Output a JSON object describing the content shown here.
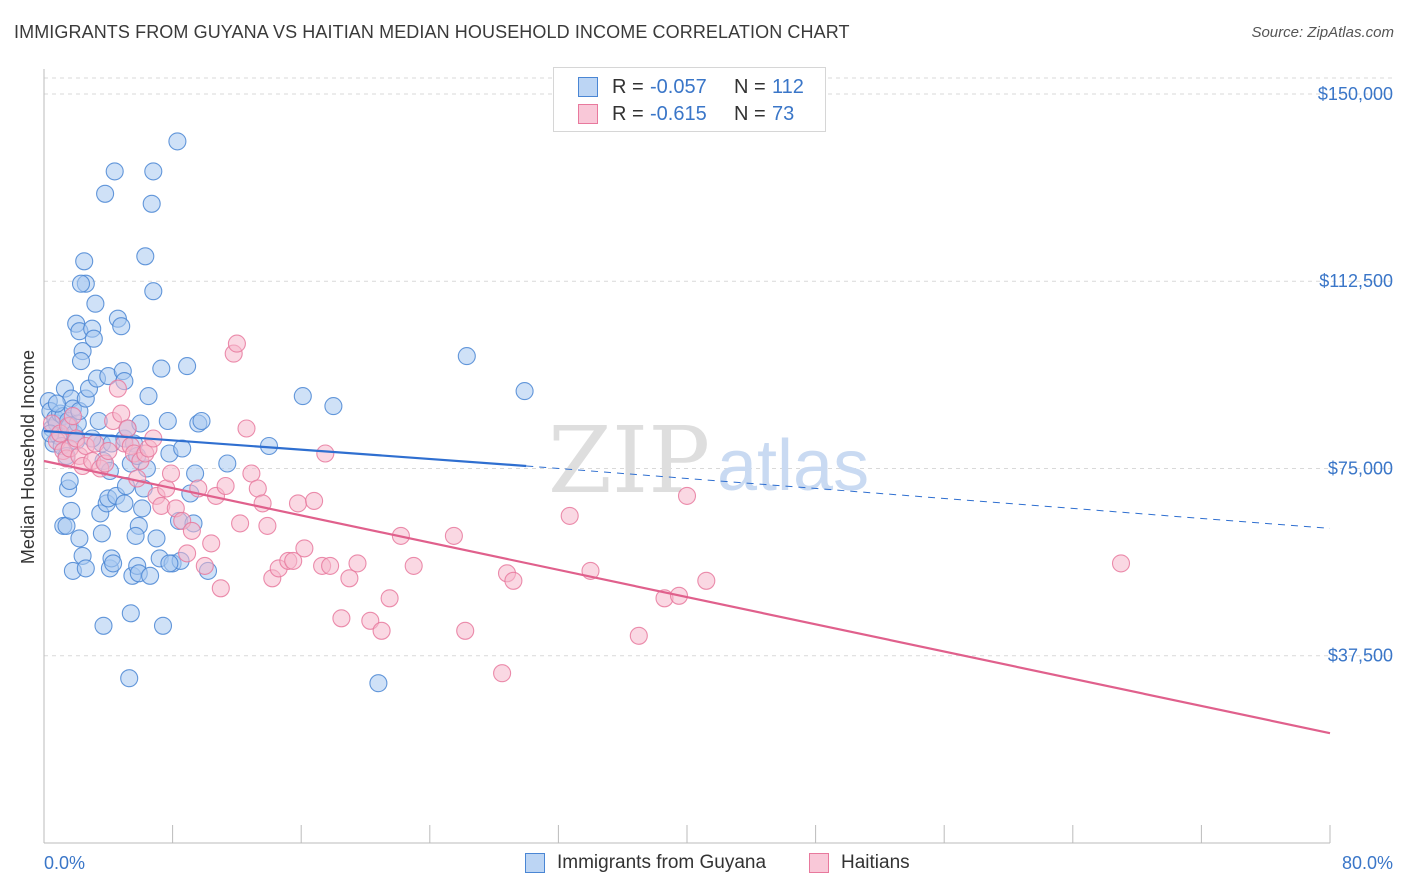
{
  "header": {
    "title": "IMMIGRANTS FROM GUYANA VS HAITIAN MEDIAN HOUSEHOLD INCOME CORRELATION CHART",
    "source": "Source: ZipAtlas.com"
  },
  "legend": {
    "rows": [
      {
        "r_label": "R =",
        "r_value": "-0.057",
        "n_label": "N =",
        "n_value": "112"
      },
      {
        "r_label": "R =",
        "r_value": "-0.615",
        "n_label": "N =",
        "n_value": "73"
      }
    ]
  },
  "watermark": {
    "zip": "ZIP",
    "atlas": "atlas"
  },
  "colors": {
    "blue_fill": "#a8c8f0",
    "blue_stroke": "#4a86d4",
    "blue_line": "#2f6fd0",
    "pink_fill": "#f6b8cc",
    "pink_stroke": "#e8799d",
    "pink_line": "#e0608c",
    "grid": "#d9d9d9",
    "axis_label": "#3a76c8"
  },
  "chart_data": {
    "type": "scatter",
    "title": "IMMIGRANTS FROM GUYANA VS HAITIAN MEDIAN HOUSEHOLD INCOME CORRELATION CHART",
    "xlabel": "",
    "ylabel": "Median Household Income",
    "xlim": [
      0,
      80
    ],
    "ylim": [
      0,
      155000
    ],
    "x_tick_labels": [
      "0.0%",
      "80.0%"
    ],
    "y_ticks": [
      37500,
      75000,
      112500,
      150000
    ],
    "y_tick_labels": [
      "$37,500",
      "$75,000",
      "$112,500",
      "$150,000"
    ],
    "grid": true,
    "legend_position": "top-center",
    "series": [
      {
        "name": "Immigrants from Guyana",
        "r": -0.057,
        "n": 112,
        "trend": {
          "x": [
            0,
            30
          ],
          "y": [
            82500,
            75500
          ],
          "dashed_extension_to_x": 80,
          "dashed_end_y": 63000
        },
        "points": [
          [
            0.3,
            88500
          ],
          [
            0.4,
            86500
          ],
          [
            0.5,
            83000
          ],
          [
            0.6,
            80000
          ],
          [
            0.7,
            85000
          ],
          [
            0.8,
            84000
          ],
          [
            0.9,
            81500
          ],
          [
            1.0,
            86000
          ],
          [
            1.1,
            79500
          ],
          [
            1.2,
            85500
          ],
          [
            1.3,
            91000
          ],
          [
            1.4,
            77500
          ],
          [
            1.5,
            84500
          ],
          [
            1.6,
            83500
          ],
          [
            1.7,
            89000
          ],
          [
            1.8,
            87000
          ],
          [
            1.9,
            82000
          ],
          [
            2.0,
            80500
          ],
          [
            2.1,
            84000
          ],
          [
            2.2,
            86500
          ],
          [
            0.4,
            82000
          ],
          [
            0.8,
            88000
          ],
          [
            1.2,
            63500
          ],
          [
            1.4,
            63500
          ],
          [
            1.5,
            71000
          ],
          [
            1.6,
            72500
          ],
          [
            1.7,
            66500
          ],
          [
            1.8,
            54500
          ],
          [
            2.2,
            61000
          ],
          [
            2.4,
            57500
          ],
          [
            2.6,
            55000
          ],
          [
            2.0,
            104000
          ],
          [
            2.2,
            102500
          ],
          [
            2.5,
            116500
          ],
          [
            2.6,
            112000
          ],
          [
            2.4,
            98500
          ],
          [
            2.3,
            96500
          ],
          [
            2.3,
            112000
          ],
          [
            2.6,
            89000
          ],
          [
            2.8,
            91000
          ],
          [
            3.0,
            103000
          ],
          [
            3.1,
            101000
          ],
          [
            3.2,
            108000
          ],
          [
            3.3,
            93000
          ],
          [
            3.4,
            84500
          ],
          [
            3.5,
            66000
          ],
          [
            3.6,
            80000
          ],
          [
            3.7,
            76500
          ],
          [
            3.0,
            81000
          ],
          [
            3.6,
            62000
          ],
          [
            3.7,
            43500
          ],
          [
            3.9,
            68000
          ],
          [
            4.0,
            69000
          ],
          [
            4.1,
            55000
          ],
          [
            4.2,
            57000
          ],
          [
            4.3,
            56000
          ],
          [
            4.0,
            93500
          ],
          [
            4.1,
            74500
          ],
          [
            4.2,
            80000
          ],
          [
            3.8,
            130000
          ],
          [
            4.4,
            134500
          ],
          [
            4.6,
            105000
          ],
          [
            4.5,
            69500
          ],
          [
            4.8,
            103500
          ],
          [
            4.9,
            94500
          ],
          [
            5.0,
            92500
          ],
          [
            5.0,
            81000
          ],
          [
            5.0,
            68000
          ],
          [
            5.2,
            83000
          ],
          [
            5.1,
            71500
          ],
          [
            5.3,
            33000
          ],
          [
            5.4,
            46000
          ],
          [
            5.5,
            53500
          ],
          [
            5.4,
            76000
          ],
          [
            5.6,
            80000
          ],
          [
            5.8,
            77500
          ],
          [
            5.9,
            63500
          ],
          [
            6.0,
            84000
          ],
          [
            6.2,
            71000
          ],
          [
            6.4,
            75000
          ],
          [
            6.1,
            67000
          ],
          [
            5.7,
            61500
          ],
          [
            5.8,
            55500
          ],
          [
            5.9,
            54000
          ],
          [
            6.3,
            117500
          ],
          [
            6.5,
            89500
          ],
          [
            6.6,
            53500
          ],
          [
            6.8,
            110500
          ],
          [
            6.8,
            134500
          ],
          [
            7.0,
            61000
          ],
          [
            7.2,
            57000
          ],
          [
            7.3,
            95000
          ],
          [
            7.4,
            43500
          ],
          [
            7.7,
            84500
          ],
          [
            7.8,
            78000
          ],
          [
            8.0,
            56000
          ],
          [
            8.4,
            64500
          ],
          [
            8.5,
            56500
          ],
          [
            8.6,
            79000
          ],
          [
            8.9,
            95500
          ],
          [
            9.1,
            70000
          ],
          [
            9.4,
            74000
          ],
          [
            9.6,
            84000
          ],
          [
            9.8,
            84500
          ],
          [
            6.7,
            128000
          ],
          [
            7.8,
            56000
          ],
          [
            9.3,
            64000
          ],
          [
            8.3,
            140500
          ],
          [
            10.2,
            54500
          ],
          [
            11.4,
            76000
          ],
          [
            14.0,
            79500
          ],
          [
            16.1,
            89500
          ],
          [
            18.0,
            87500
          ],
          [
            20.8,
            32000
          ],
          [
            26.3,
            97500
          ],
          [
            29.9,
            90500
          ]
        ]
      },
      {
        "name": "Haitians",
        "r": -0.615,
        "n": 73,
        "trend": {
          "x": [
            0,
            80
          ],
          "y": [
            76500,
            22000
          ]
        },
        "points": [
          [
            0.5,
            84000
          ],
          [
            0.8,
            80500
          ],
          [
            1.0,
            82000
          ],
          [
            1.2,
            78500
          ],
          [
            1.4,
            77000
          ],
          [
            1.5,
            83500
          ],
          [
            1.6,
            79000
          ],
          [
            1.8,
            85500
          ],
          [
            2.0,
            81000
          ],
          [
            2.2,
            77500
          ],
          [
            2.4,
            75500
          ],
          [
            2.6,
            79500
          ],
          [
            3.0,
            76500
          ],
          [
            3.2,
            80000
          ],
          [
            3.5,
            75000
          ],
          [
            3.8,
            76000
          ],
          [
            4.0,
            78500
          ],
          [
            4.3,
            84500
          ],
          [
            4.6,
            91000
          ],
          [
            4.8,
            86000
          ],
          [
            5.0,
            80000
          ],
          [
            5.2,
            83000
          ],
          [
            5.4,
            79500
          ],
          [
            5.6,
            78000
          ],
          [
            5.8,
            73000
          ],
          [
            6.0,
            76500
          ],
          [
            6.3,
            78000
          ],
          [
            6.5,
            79000
          ],
          [
            6.8,
            81000
          ],
          [
            7.0,
            69500
          ],
          [
            7.3,
            67500
          ],
          [
            7.6,
            71000
          ],
          [
            7.9,
            74000
          ],
          [
            8.2,
            67000
          ],
          [
            8.6,
            64500
          ],
          [
            8.9,
            58000
          ],
          [
            9.2,
            62500
          ],
          [
            9.6,
            71000
          ],
          [
            10.0,
            55500
          ],
          [
            10.4,
            60000
          ],
          [
            10.7,
            69500
          ],
          [
            11.0,
            51000
          ],
          [
            11.3,
            71500
          ],
          [
            11.8,
            98000
          ],
          [
            12.0,
            100000
          ],
          [
            12.2,
            64000
          ],
          [
            12.6,
            83000
          ],
          [
            12.9,
            74000
          ],
          [
            13.3,
            71000
          ],
          [
            13.6,
            68000
          ],
          [
            13.9,
            63500
          ],
          [
            14.2,
            53000
          ],
          [
            14.6,
            55000
          ],
          [
            15.2,
            56500
          ],
          [
            15.5,
            56500
          ],
          [
            15.8,
            68000
          ],
          [
            16.2,
            59000
          ],
          [
            16.8,
            68500
          ],
          [
            17.3,
            55500
          ],
          [
            17.5,
            78000
          ],
          [
            17.8,
            55500
          ],
          [
            18.5,
            45000
          ],
          [
            19.0,
            53000
          ],
          [
            19.5,
            56000
          ],
          [
            20.3,
            44500
          ],
          [
            21.0,
            42500
          ],
          [
            21.5,
            49000
          ],
          [
            22.2,
            61500
          ],
          [
            23.0,
            55500
          ],
          [
            25.5,
            61500
          ],
          [
            26.2,
            42500
          ],
          [
            28.5,
            34000
          ],
          [
            28.8,
            54000
          ],
          [
            29.2,
            52500
          ],
          [
            32.7,
            65500
          ],
          [
            34.0,
            54500
          ],
          [
            37.0,
            41500
          ],
          [
            38.6,
            49000
          ],
          [
            39.5,
            49500
          ],
          [
            40.0,
            69500
          ],
          [
            41.2,
            52500
          ],
          [
            67.0,
            56000
          ]
        ]
      }
    ]
  },
  "bottom_legend": {
    "items": [
      "Immigrants from Guyana",
      "Haitians"
    ]
  }
}
